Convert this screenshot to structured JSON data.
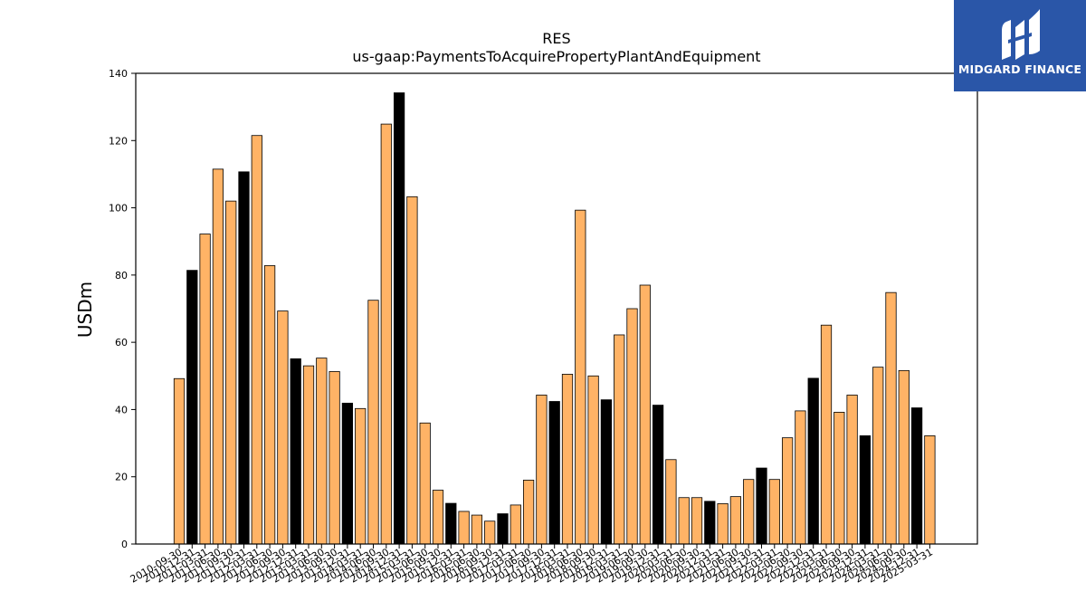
{
  "chart_data": {
    "type": "bar",
    "title": "RES",
    "subtitle": "us-gaap:PaymentsToAcquirePropertyPlantAndEquipment",
    "ylabel": "USDm",
    "xlabel": "",
    "ylim": [
      0,
      140
    ],
    "yticks": [
      0,
      20,
      40,
      60,
      80,
      100,
      120,
      140
    ],
    "grid": false,
    "colors": {
      "quarter": "#ffb366",
      "annual": "#000000",
      "edge": "#000000"
    },
    "categories": [
      "2010-09-30",
      "2010-12-31",
      "2011-03-31",
      "2011-06-30",
      "2011-09-30",
      "2011-12-31",
      "2012-03-31",
      "2012-06-30",
      "2012-09-30",
      "2012-12-31",
      "2013-03-31",
      "2013-06-30",
      "2013-09-30",
      "2013-12-31",
      "2014-03-31",
      "2014-06-30",
      "2014-09-30",
      "2014-12-31",
      "2015-03-31",
      "2015-06-30",
      "2015-09-30",
      "2015-12-31",
      "2016-03-31",
      "2016-06-30",
      "2016-09-30",
      "2016-12-31",
      "2017-03-31",
      "2017-06-30",
      "2017-09-30",
      "2017-12-31",
      "2018-03-31",
      "2018-06-30",
      "2018-09-30",
      "2018-12-31",
      "2019-03-31",
      "2019-06-30",
      "2019-09-30",
      "2019-12-31",
      "2020-03-31",
      "2020-06-30",
      "2020-09-30",
      "2020-12-31",
      "2021-03-31",
      "2021-06-30",
      "2021-09-30",
      "2021-12-31",
      "2022-03-31",
      "2022-06-30",
      "2022-09-30",
      "2022-12-31",
      "2023-03-31",
      "2023-06-30",
      "2023-09-30",
      "2023-12-31",
      "2024-03-31",
      "2024-06-30",
      "2024-09-30",
      "2024-12-31",
      "2025-03-31"
    ],
    "values": [
      49.2,
      81.4,
      92.2,
      111.5,
      102.0,
      110.7,
      121.5,
      82.8,
      69.3,
      55.1,
      53.0,
      55.3,
      51.3,
      41.9,
      40.3,
      72.5,
      124.9,
      134.2,
      103.3,
      36.0,
      16.0,
      12.1,
      9.7,
      8.6,
      6.8,
      9.0,
      11.6,
      19.0,
      44.3,
      42.4,
      50.5,
      99.3,
      50.0,
      42.9,
      62.2,
      70.0,
      77.0,
      41.3,
      25.1,
      13.8,
      13.8,
      12.7,
      12.0,
      14.1,
      19.2,
      22.6,
      19.2,
      31.6,
      39.6,
      49.3,
      65.1,
      39.2,
      44.3,
      32.2,
      52.6,
      74.8,
      51.6,
      40.5,
      32.2
    ],
    "annual": [
      false,
      true,
      false,
      false,
      false,
      true,
      false,
      false,
      false,
      true,
      false,
      false,
      false,
      true,
      false,
      false,
      false,
      true,
      false,
      false,
      false,
      true,
      false,
      false,
      false,
      true,
      false,
      false,
      false,
      true,
      false,
      false,
      false,
      true,
      false,
      false,
      false,
      true,
      false,
      false,
      false,
      true,
      false,
      false,
      false,
      true,
      false,
      false,
      false,
      true,
      false,
      false,
      false,
      true,
      false,
      false,
      false,
      true,
      false
    ]
  },
  "brand": {
    "name": "MIDGARD FINANCE",
    "color": "#2a56a8",
    "icon": "midgard-logo-icon"
  }
}
